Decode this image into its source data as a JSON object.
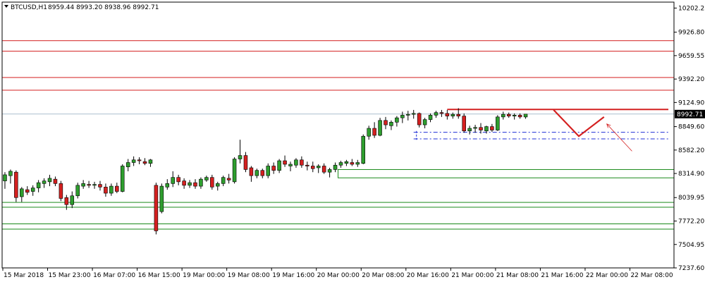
{
  "header": {
    "symbol": "BTCUSD,H1",
    "ohlc": "8959.44 8993.20 8938.96 8992.71"
  },
  "colors": {
    "bull_fill": "#2e9e2e",
    "bear_fill": "#d42020",
    "wick": "#000000",
    "support_box": "#1a8a1a",
    "resistance_box": "#d42020",
    "trend_line": "#d42020",
    "blue_dash": "#1f2fd6",
    "price_line": "#7a9ab0"
  },
  "chart_data": {
    "type": "candlestick",
    "title": "",
    "price_axis": {
      "ylim": [
        7237.6,
        10270
      ],
      "ticks": [
        "10202.25",
        "9926.80",
        "9659.55",
        "9392.20",
        "9124.90",
        "8849.60",
        "8582.20",
        "8314.90",
        "8039.95",
        "7772.20",
        "7504.95",
        "7237.60"
      ],
      "current_price": "8992.71",
      "current_value": 8992.71
    },
    "time_axis": {
      "labels": [
        "15 Mar 2018",
        "15 Mar 23:00",
        "16 Mar 07:00",
        "16 Mar 15:00",
        "19 Mar 00:00",
        "19 Mar 08:00",
        "19 Mar 16:00",
        "20 Mar 00:00",
        "20 Mar 08:00",
        "20 Mar 16:00",
        "21 Mar 00:00",
        "21 Mar 08:00",
        "21 Mar 16:00",
        "22 Mar 00:00",
        "22 Mar 08:00"
      ],
      "bars_per_label": 8
    },
    "candles": [
      [
        8230,
        8330,
        8140,
        8300
      ],
      [
        8290,
        8360,
        8200,
        8340
      ],
      [
        8330,
        8350,
        7990,
        8040
      ],
      [
        8050,
        8160,
        7990,
        8140
      ],
      [
        8130,
        8170,
        8070,
        8100
      ],
      [
        8110,
        8180,
        8060,
        8150
      ],
      [
        8150,
        8240,
        8100,
        8210
      ],
      [
        8200,
        8260,
        8150,
        8230
      ],
      [
        8220,
        8300,
        8170,
        8260
      ],
      [
        8250,
        8280,
        8170,
        8200
      ],
      [
        8200,
        8230,
        8000,
        8030
      ],
      [
        8040,
        8070,
        7900,
        7960
      ],
      [
        7960,
        8110,
        7920,
        8060
      ],
      [
        8060,
        8210,
        8030,
        8180
      ],
      [
        8170,
        8240,
        8140,
        8200
      ],
      [
        8190,
        8230,
        8150,
        8180
      ],
      [
        8180,
        8220,
        8140,
        8190
      ],
      [
        8190,
        8230,
        8120,
        8160
      ],
      [
        8160,
        8200,
        8050,
        8090
      ],
      [
        8090,
        8200,
        8060,
        8170
      ],
      [
        8170,
        8210,
        8090,
        8110
      ],
      [
        8110,
        8420,
        8100,
        8400
      ],
      [
        8390,
        8480,
        8340,
        8440
      ],
      [
        8440,
        8510,
        8400,
        8470
      ],
      [
        8470,
        8500,
        8420,
        8460
      ],
      [
        8450,
        8490,
        8410,
        8430
      ],
      [
        8430,
        8480,
        8390,
        8470
      ],
      [
        8180,
        8210,
        7620,
        7660
      ],
      [
        7880,
        8200,
        7860,
        8170
      ],
      [
        8160,
        8250,
        8130,
        8200
      ],
      [
        8200,
        8340,
        8160,
        8270
      ],
      [
        8270,
        8300,
        8180,
        8220
      ],
      [
        8230,
        8260,
        8140,
        8180
      ],
      [
        8180,
        8240,
        8150,
        8210
      ],
      [
        8210,
        8250,
        8140,
        8170
      ],
      [
        8170,
        8270,
        8140,
        8250
      ],
      [
        8240,
        8290,
        8220,
        8270
      ],
      [
        8270,
        8300,
        8130,
        8160
      ],
      [
        8170,
        8220,
        8120,
        8200
      ],
      [
        8200,
        8290,
        8170,
        8270
      ],
      [
        8260,
        8310,
        8200,
        8240
      ],
      [
        8220,
        8500,
        8200,
        8480
      ],
      [
        8480,
        8700,
        8430,
        8520
      ],
      [
        8520,
        8560,
        8330,
        8360
      ],
      [
        8380,
        8400,
        8220,
        8290
      ],
      [
        8290,
        8370,
        8260,
        8350
      ],
      [
        8350,
        8370,
        8260,
        8290
      ],
      [
        8290,
        8430,
        8260,
        8400
      ],
      [
        8400,
        8440,
        8310,
        8350
      ],
      [
        8350,
        8480,
        8320,
        8460
      ],
      [
        8460,
        8520,
        8390,
        8420
      ],
      [
        8400,
        8450,
        8340,
        8420
      ],
      [
        8410,
        8490,
        8380,
        8470
      ],
      [
        8470,
        8510,
        8380,
        8410
      ],
      [
        8410,
        8450,
        8350,
        8400
      ],
      [
        8400,
        8450,
        8330,
        8370
      ],
      [
        8380,
        8420,
        8320,
        8400
      ],
      [
        8400,
        8430,
        8310,
        8330
      ],
      [
        8330,
        8380,
        8270,
        8360
      ],
      [
        8360,
        8440,
        8330,
        8410
      ],
      [
        8410,
        8460,
        8380,
        8440
      ],
      [
        8430,
        8470,
        8400,
        8450
      ],
      [
        8440,
        8480,
        8400,
        8420
      ],
      [
        8420,
        8470,
        8390,
        8440
      ],
      [
        8430,
        8760,
        8420,
        8740
      ],
      [
        8740,
        8860,
        8700,
        8830
      ],
      [
        8830,
        8900,
        8720,
        8750
      ],
      [
        8750,
        8950,
        8740,
        8920
      ],
      [
        8920,
        8960,
        8820,
        8870
      ],
      [
        8860,
        8920,
        8810,
        8900
      ],
      [
        8900,
        8970,
        8850,
        8950
      ],
      [
        8950,
        9020,
        8890,
        8980
      ],
      [
        8980,
        9030,
        8920,
        8990
      ],
      [
        8990,
        9040,
        8940,
        9000
      ],
      [
        9000,
        9010,
        8840,
        8870
      ],
      [
        8870,
        8950,
        8830,
        8930
      ],
      [
        8930,
        9000,
        8900,
        8980
      ],
      [
        8980,
        9030,
        8950,
        9010
      ],
      [
        9010,
        9040,
        8960,
        9000
      ],
      [
        9000,
        9040,
        8930,
        8970
      ],
      [
        8970,
        9010,
        8940,
        8990
      ],
      [
        8990,
        9060,
        8940,
        8970
      ],
      [
        8970,
        9000,
        8780,
        8800
      ],
      [
        8800,
        8860,
        8760,
        8830
      ],
      [
        8830,
        8870,
        8780,
        8840
      ],
      [
        8840,
        8890,
        8770,
        8810
      ],
      [
        8800,
        8860,
        8770,
        8850
      ],
      [
        8850,
        8880,
        8790,
        8810
      ],
      [
        8810,
        8980,
        8800,
        8960
      ],
      [
        8960,
        9020,
        8930,
        8990
      ],
      [
        8990,
        9010,
        8950,
        8970
      ],
      [
        8970,
        9000,
        8930,
        8980
      ],
      [
        8980,
        9000,
        8940,
        8960
      ],
      [
        8959.44,
        8993.2,
        8938.96,
        8992.71
      ]
    ],
    "zones": [
      {
        "kind": "resistance",
        "top": 9830,
        "bottom": 9710,
        "x_from": 0
      },
      {
        "kind": "resistance",
        "top": 9410,
        "bottom": 9265,
        "x_from": 0
      },
      {
        "kind": "support",
        "top": 8360,
        "bottom": 8265,
        "x_from": 59.5
      },
      {
        "kind": "support",
        "top": 7985,
        "bottom": 7930,
        "x_from": 0
      },
      {
        "kind": "support",
        "top": 7740,
        "bottom": 7680,
        "x_from": 0
      }
    ],
    "hlines": [
      {
        "kind": "resistance-line",
        "value": 9045,
        "x_from": 79,
        "x_to": 118.5
      },
      {
        "kind": "blue-dash",
        "value": 8785,
        "x_from": 73,
        "x_to": 118.5
      },
      {
        "kind": "blue-dash",
        "value": 8710,
        "x_from": 73,
        "x_to": 118.5
      }
    ],
    "blue_vertical": {
      "x": 73.5,
      "top": 8800,
      "bottom": 8700
    },
    "pattern_lines": [
      {
        "points": [
          [
            98,
            9040
          ],
          [
            102.5,
            8740
          ],
          [
            107,
            8960
          ]
        ]
      }
    ],
    "arrow": {
      "from": [
        107.5,
        8880
      ],
      "to": [
        112,
        8570
      ]
    },
    "visible_bars": 120
  }
}
